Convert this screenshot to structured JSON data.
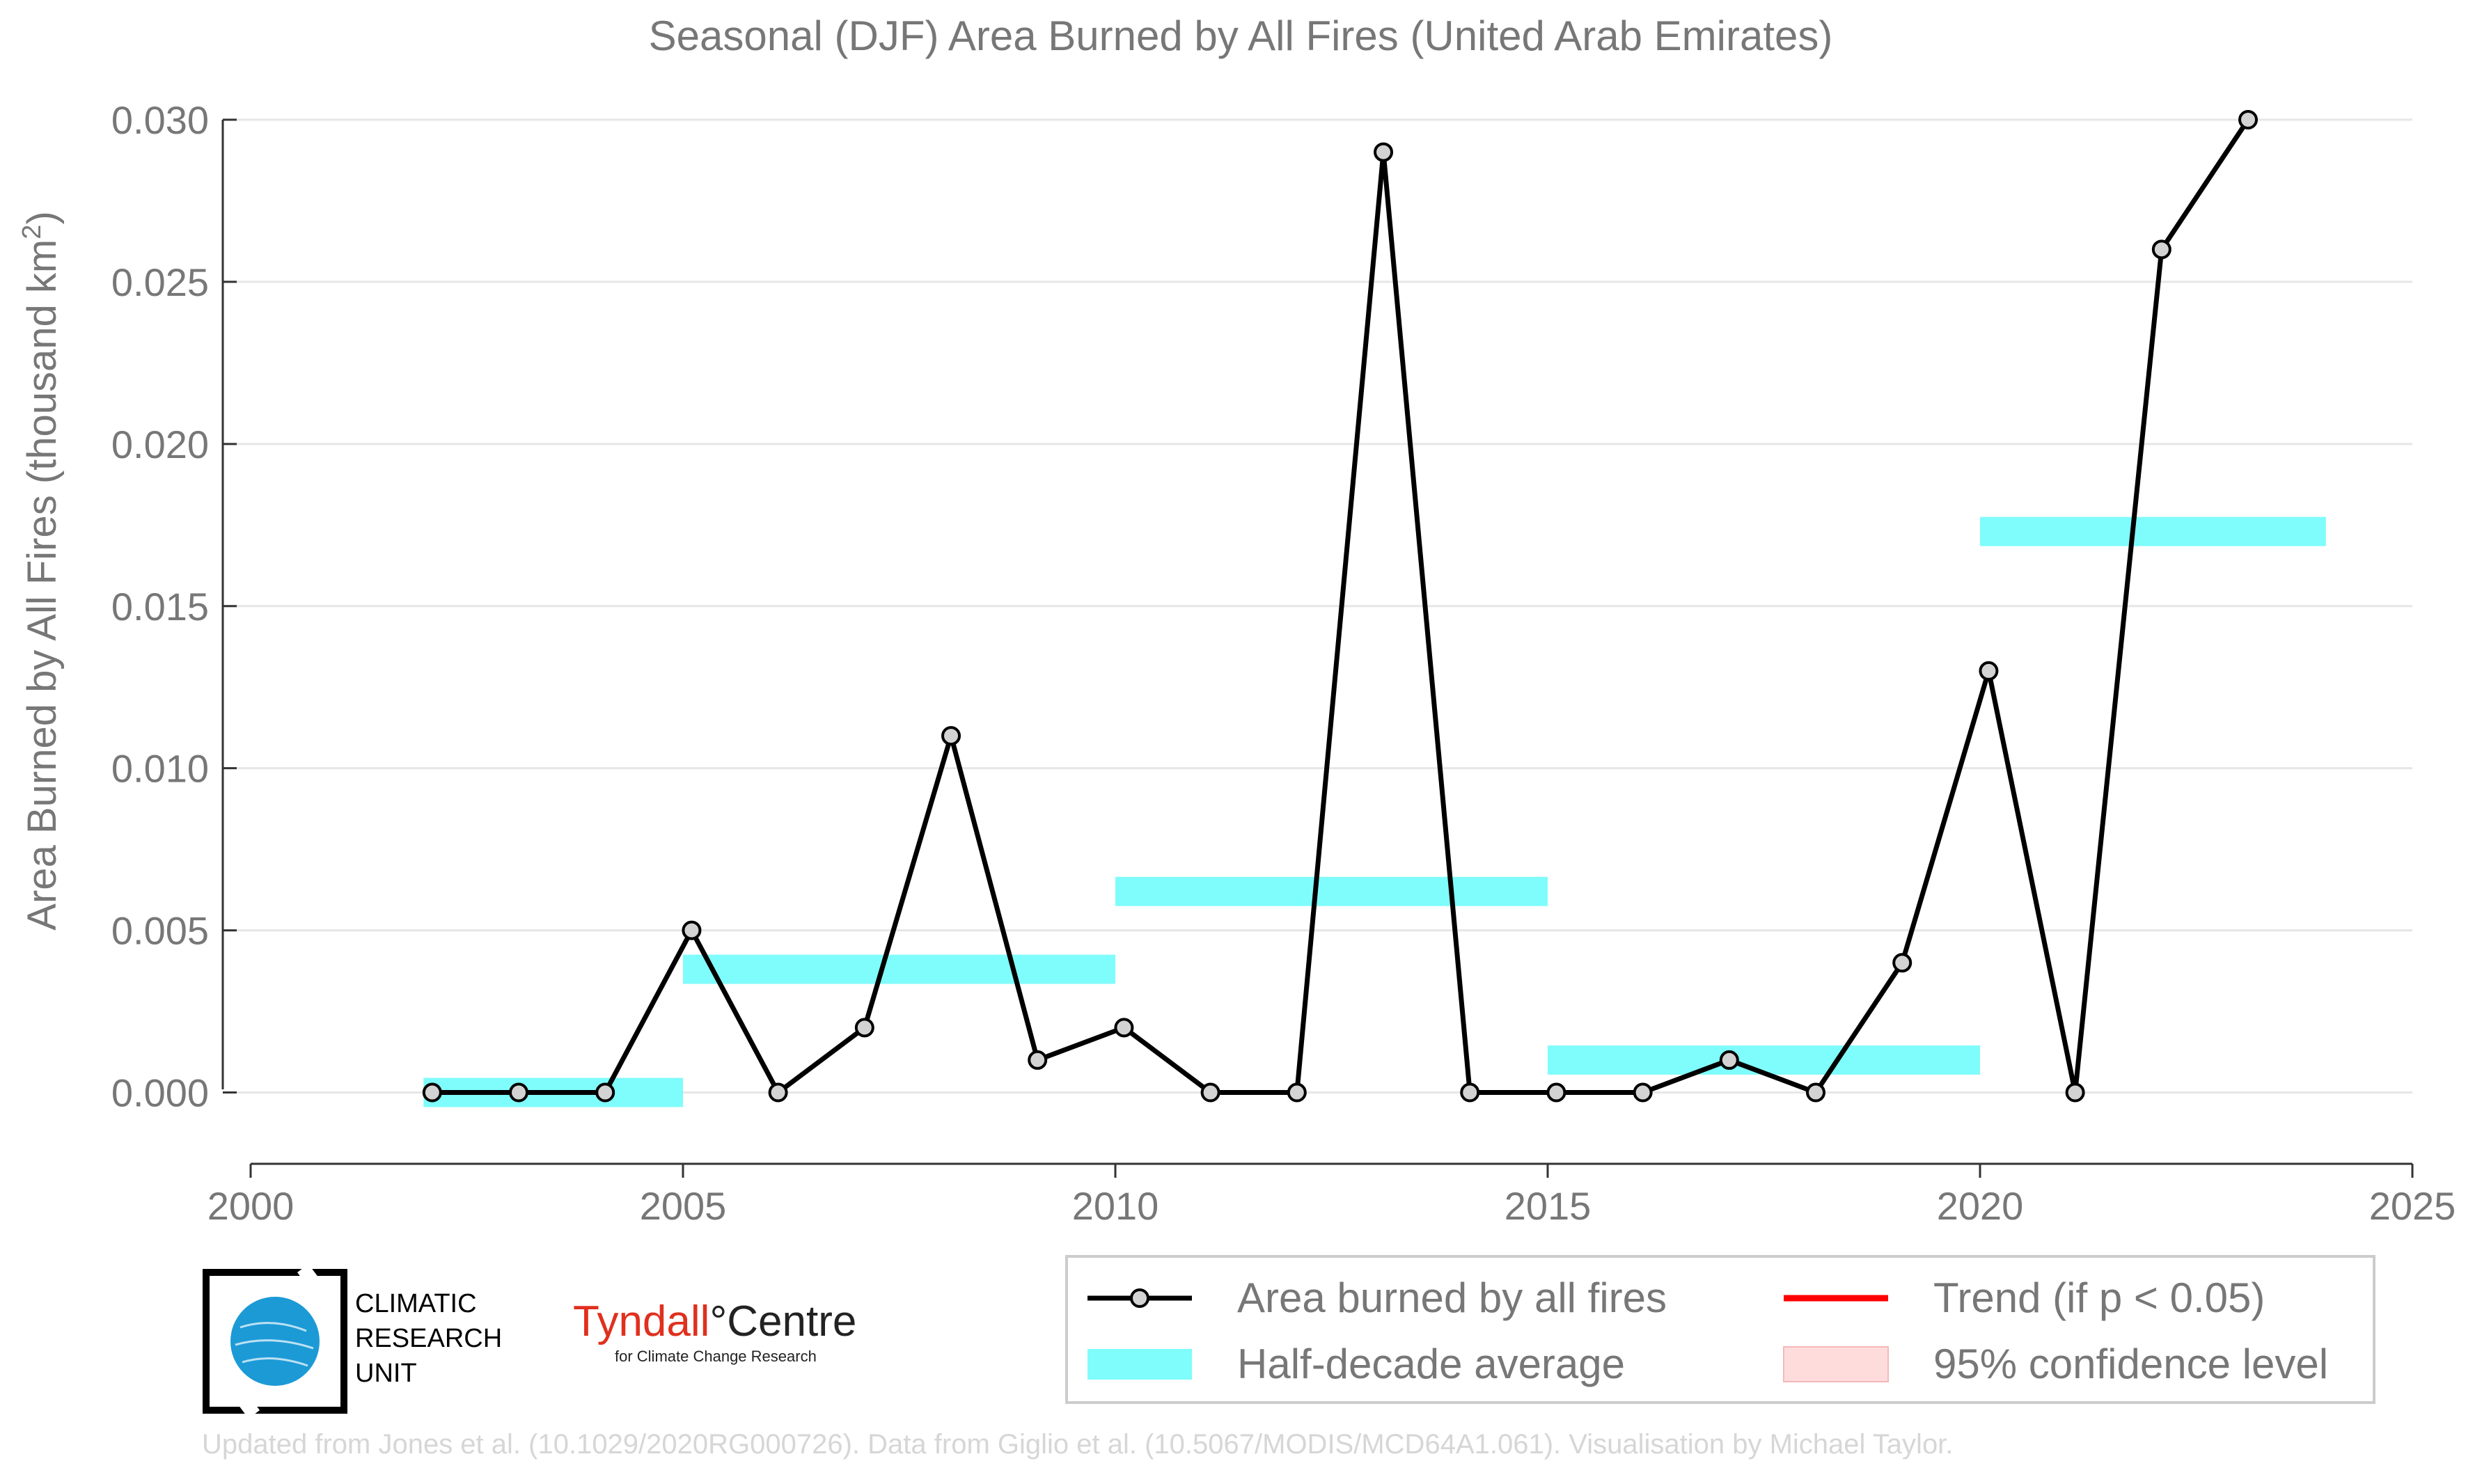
{
  "chart_data": {
    "type": "line",
    "title": "Seasonal (DJF) Area Burned by All Fires (United Arab Emirates)",
    "ylabel": "Area Burned by All Fires (thousand km",
    "ylabel_sup": "2",
    "ylabel_close": ")",
    "xlim": [
      2000,
      2025
    ],
    "ylim": [
      -0.0022,
      0.03
    ],
    "x_ticks": [
      2000,
      2005,
      2010,
      2015,
      2020,
      2025
    ],
    "x_tick_labels": [
      "2000",
      "2005",
      "2010",
      "2015",
      "2020",
      "2025"
    ],
    "y_ticks": [
      0.0,
      0.005,
      0.01,
      0.015,
      0.02,
      0.025,
      0.03
    ],
    "y_tick_labels": [
      "0.000",
      "0.005",
      "0.010",
      "0.015",
      "0.020",
      "0.025",
      "0.030"
    ],
    "grid": "horizontal",
    "series": [
      {
        "name": "Area burned by all fires",
        "color": "#000000",
        "marker_fill": "#d3d3d3",
        "x": [
          2002.1,
          2003.1,
          2004.1,
          2005.1,
          2006.1,
          2007.1,
          2008.1,
          2009.1,
          2010.1,
          2011.1,
          2012.1,
          2013.1,
          2014.1,
          2015.1,
          2016.1,
          2017.1,
          2018.1,
          2019.1,
          2020.1,
          2021.1,
          2022.1,
          2023.1
        ],
        "y": [
          0.0,
          0.0,
          0.0,
          0.005,
          0.0,
          0.002,
          0.011,
          0.001,
          0.002,
          0.0,
          0.0,
          0.029,
          0.0,
          0.0,
          0.0,
          0.001,
          0.0,
          0.004,
          0.013,
          0.0,
          0.026,
          0.03
        ]
      }
    ],
    "half_decade_averages": {
      "name": "Half-decade average",
      "color": "#7ffcfc",
      "segments": [
        {
          "x0": 2002,
          "x1": 2005,
          "value": 0.0
        },
        {
          "x0": 2005,
          "x1": 2010,
          "value": 0.0038
        },
        {
          "x0": 2010,
          "x1": 2015,
          "value": 0.0062
        },
        {
          "x0": 2015,
          "x1": 2020,
          "value": 0.001
        },
        {
          "x0": 2020,
          "x1": 2024,
          "value": 0.0173
        }
      ]
    },
    "legend": {
      "placement": "bottom-right",
      "items": [
        {
          "label": "Area burned by all fires",
          "kind": "line-marker",
          "color": "#000000"
        },
        {
          "label": "Trend (if p < 0.05)",
          "kind": "line",
          "color": "#ff0000"
        },
        {
          "label": "Half-decade average",
          "kind": "band",
          "color": "#7ffcfc"
        },
        {
          "label": "95% confidence level",
          "kind": "patch",
          "color": "#ffdcdc"
        }
      ]
    }
  },
  "logos": {
    "cru_lines": [
      "CLIMATIC",
      "RESEARCH",
      "UNIT"
    ],
    "tyndall_name": "Tyndall",
    "tyndall_degree": "°",
    "tyndall_centre": "Centre",
    "tyndall_sub": "for Climate Change Research"
  },
  "footer": "Updated from Jones et al. (10.1029/2020RG000726). Data from Giglio et al. (10.5067/MODIS/MCD64A1.061). Visualisation by Michael Taylor."
}
